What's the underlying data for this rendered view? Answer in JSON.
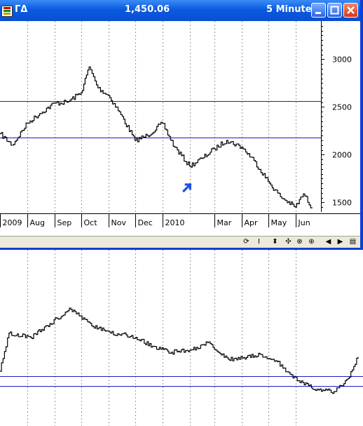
{
  "window": {
    "symbol": "ΓΔ",
    "price": "1,450.06",
    "timeframe": "5 Minute"
  },
  "toolbar": {
    "buttons": [
      {
        "icon": "refresh-icon",
        "glyph": "⟳"
      },
      {
        "icon": "cursor-icon",
        "glyph": "I"
      },
      {
        "icon": "move-vertical-icon",
        "glyph": "⬍"
      },
      {
        "icon": "crosshair-icon",
        "glyph": "✣"
      },
      {
        "icon": "zoom-icon",
        "glyph": "⊗"
      },
      {
        "icon": "target-icon",
        "glyph": "⊕"
      },
      {
        "icon": "scroll-left-icon",
        "glyph": "◀"
      },
      {
        "icon": "scroll-right-icon",
        "glyph": "▶"
      },
      {
        "icon": "window-icon",
        "glyph": "▤"
      }
    ]
  },
  "chart_data": [
    {
      "type": "line",
      "x_tick_labels": [
        "2009",
        "Aug",
        "Sep",
        "Oct",
        "Nov",
        "Dec",
        "2010",
        "Mar",
        "Apr",
        "May",
        "Jun"
      ],
      "y_tick_labels": [
        "3000",
        "2500",
        "2000",
        "1500"
      ],
      "ylim": [
        1400,
        3400
      ],
      "horizontal_lines": [
        2560,
        2180
      ],
      "series": [
        {
          "x": [
            "2009-07-01",
            "2009-07-15",
            "2009-08-01",
            "2009-08-15",
            "2009-09-01",
            "2009-09-15",
            "2009-10-01",
            "2009-10-10",
            "2009-10-20",
            "2009-11-01",
            "2009-11-15",
            "2009-12-01",
            "2009-12-15",
            "2010-01-01",
            "2010-01-15",
            "2010-02-01",
            "2010-02-15",
            "2010-03-01",
            "2010-03-15",
            "2010-04-01",
            "2010-04-15",
            "2010-05-01",
            "2010-05-15",
            "2010-06-01",
            "2010-06-10",
            "2010-06-20"
          ],
          "values": [
            2220,
            2100,
            2330,
            2430,
            2540,
            2550,
            2650,
            2920,
            2700,
            2620,
            2420,
            2150,
            2200,
            2330,
            2080,
            1880,
            1960,
            2060,
            2150,
            2080,
            1940,
            1720,
            1560,
            1450,
            1590,
            1440
          ]
        }
      ],
      "annotation": "blue arrow near Feb 2010 low"
    },
    {
      "type": "line",
      "horizontal_lines": [
        "upper",
        "lower"
      ],
      "series": [
        {
          "x": [
            "2009-07-01",
            "2009-07-10",
            "2009-08-01",
            "2009-08-20",
            "2009-09-10",
            "2009-10-01",
            "2009-10-20",
            "2009-11-10",
            "2009-12-01",
            "2009-12-20",
            "2010-01-10",
            "2010-01-25",
            "2010-02-15",
            "2010-03-01",
            "2010-03-20",
            "2010-04-05",
            "2010-04-25",
            "2010-05-15",
            "2010-06-01",
            "2010-06-15",
            "2010-06-25"
          ],
          "values": [
            0.1,
            0.42,
            0.38,
            0.5,
            0.62,
            0.48,
            0.42,
            0.4,
            0.31,
            0.26,
            0.28,
            0.34,
            0.2,
            0.21,
            0.24,
            0.18,
            0.02,
            -0.05,
            -0.07,
            0.04,
            0.22
          ]
        }
      ]
    }
  ],
  "colors": {
    "titlebar": "#0a5ae0",
    "line": "#000000",
    "hline": "#1a1acd",
    "arrow": "#1a4fe0",
    "grid": "#9a9a9a"
  }
}
